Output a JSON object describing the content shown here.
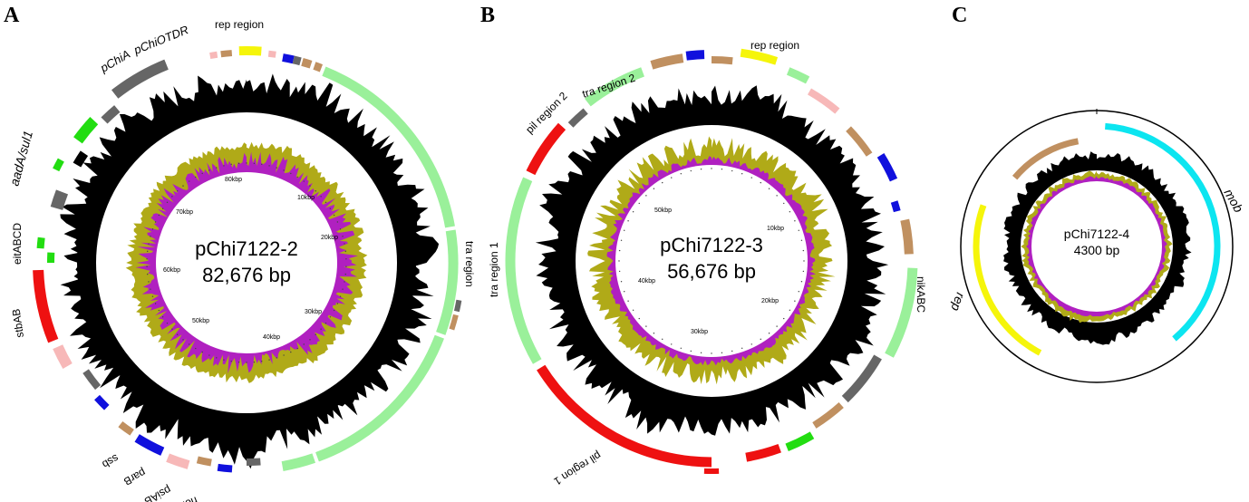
{
  "colors": {
    "light_green": "#9af09a",
    "green": "#22dd11",
    "gray": "#666666",
    "tan": "#c09060",
    "blue": "#1010dd",
    "red": "#ee1111",
    "pink": "#f7b8b8",
    "yellow": "#f5f50a",
    "cyan": "#0ce5f0",
    "purple": "#b020c0",
    "olive": "#b0aa18",
    "black": "#000000"
  },
  "panels": [
    {
      "letter": "A",
      "name": "pChi7122-2",
      "size_label": "82,676 bp",
      "ticks": [
        "80kbp",
        "10kbp",
        "20kbp",
        "30kbp",
        "40kbp",
        "50kbp",
        "60kbp",
        "70kbp"
      ],
      "labels": [
        "rep region",
        "pChiA",
        "pChiOTDR",
        "aadA/sul1",
        "eitABCD",
        "stbAB",
        "psiAB",
        "parB",
        "ssb",
        "hok",
        "tra region"
      ]
    },
    {
      "letter": "B",
      "name": "pChi7122-3",
      "size_label": "56,676 bp",
      "ticks": [
        "10kbp",
        "20kbp",
        "30kbp",
        "40kbp",
        "50kbp"
      ],
      "labels": [
        "rep region",
        "tra region 2",
        "pil region 2",
        "tra region 1",
        "pil region 1",
        "nikABC"
      ]
    },
    {
      "letter": "C",
      "name": "pChi7122-4",
      "size_label": "4300 bp",
      "ticks": [],
      "labels": [
        "mob",
        "rep"
      ]
    }
  ]
}
